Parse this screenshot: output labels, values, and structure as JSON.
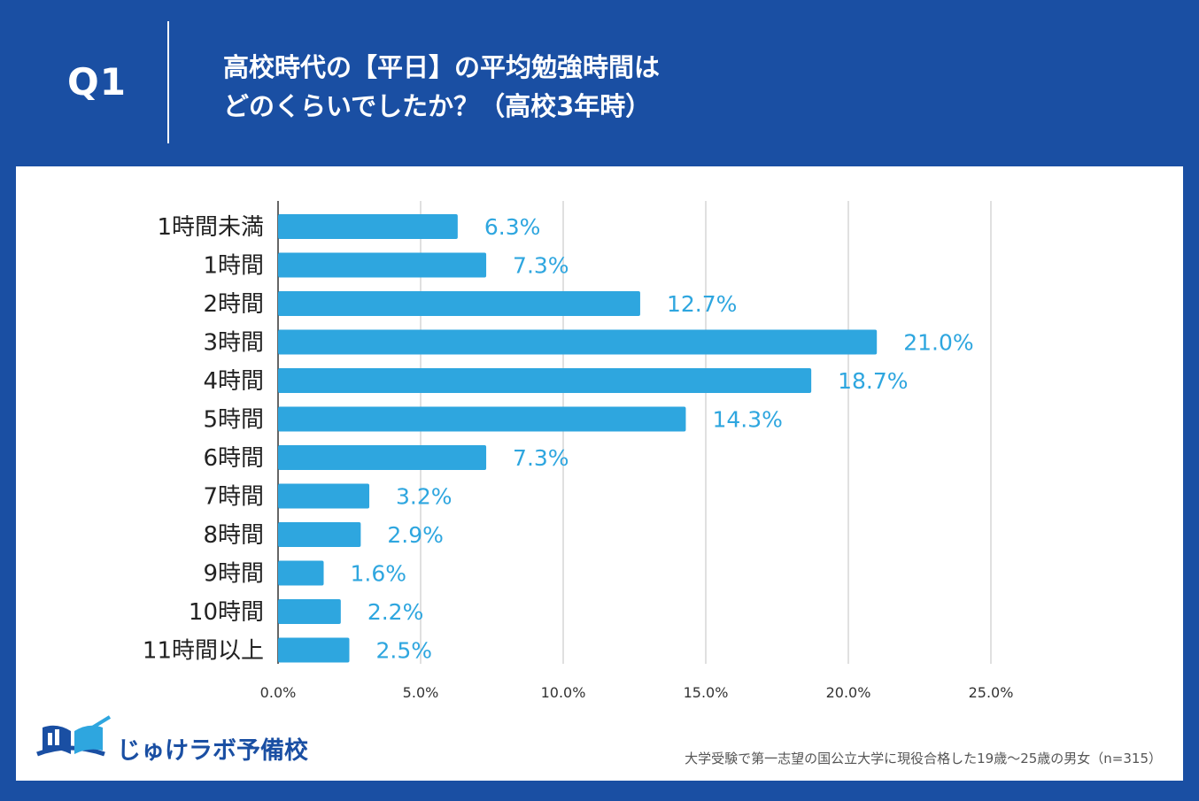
{
  "header": {
    "q_label": "Q1",
    "title_line1": "高校時代の【平日】の平均勉強時間は",
    "title_line2": "どのくらいでしたか？（高校3年時）"
  },
  "colors": {
    "background": "#1a4fa3",
    "bar": "#2ea6df",
    "value_text": "#2ea6df"
  },
  "chart_data": {
    "type": "bar",
    "orientation": "horizontal",
    "title": "高校時代の【平日】の平均勉強時間はどのくらいでしたか？（高校3年時）",
    "categories": [
      "1時間未満",
      "1時間",
      "2時間",
      "3時間",
      "4時間",
      "5時間",
      "6時間",
      "7時間",
      "8時間",
      "9時間",
      "10時間",
      "11時間以上"
    ],
    "values": [
      6.3,
      7.3,
      12.7,
      21.0,
      18.7,
      14.3,
      7.3,
      3.2,
      2.9,
      1.6,
      2.2,
      2.5
    ],
    "value_labels": [
      "6.3%",
      "7.3%",
      "12.7%",
      "21.0%",
      "18.7%",
      "14.3%",
      "7.3%",
      "3.2%",
      "2.9%",
      "1.6%",
      "2.2%",
      "2.5%"
    ],
    "xlim": [
      0,
      25
    ],
    "x_ticks": [
      0,
      5,
      10,
      15,
      20,
      25
    ],
    "x_tick_labels": [
      "0.0%",
      "5.0%",
      "10.0%",
      "15.0%",
      "20.0%",
      "25.0%"
    ],
    "grid": true,
    "xlabel": "",
    "ylabel": ""
  },
  "footer": {
    "logo_text": "じゅけラボ予備校",
    "note": "大学受験で第一志望の国公立大学に現役合格した19歳～25歳の男女（n=315）"
  }
}
